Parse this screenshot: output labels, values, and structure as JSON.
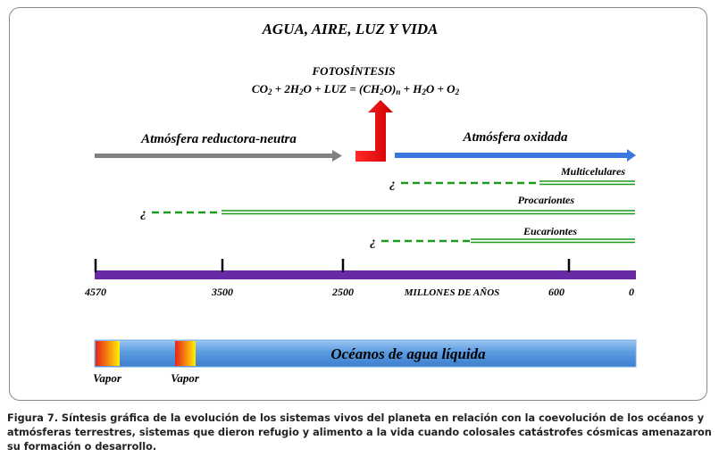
{
  "title": "AGUA, AIRE, LUZ Y VIDA",
  "photosynthesis": {
    "heading": "FOTOSÍNTESIS",
    "eq": {
      "p1": "CO",
      "s1": "2",
      "p2": " + 2H",
      "s2": "2",
      "p3": "O + LUZ = (CH",
      "s3": "2",
      "p4": "O)",
      "s4": "n",
      "p5": " + H",
      "s5": "2",
      "p6": "O + O",
      "s6": "2"
    }
  },
  "atmosphere": {
    "reducing_label": "Atmósfera reductora-neutra",
    "oxidized_label": "Atmósfera oxidada",
    "colors": {
      "reducing": "#808080",
      "oxidized": "#3a78e0",
      "transition": "#ff0000"
    }
  },
  "life": [
    {
      "label": "Multicelulares",
      "prefix": "¿"
    },
    {
      "label": "Procariontes",
      "prefix": "¿"
    },
    {
      "label": "Eucariontes",
      "prefix": "¿"
    }
  ],
  "timeline": {
    "ticks": [
      "4570",
      "3500",
      "2500",
      "600",
      "0"
    ],
    "unit_label": "MILLONES DE AÑOS",
    "color": "#6a2aa8"
  },
  "oceans": {
    "label": "Océanos de agua líquida",
    "vapor_labels": [
      "Vapor",
      "Vapor"
    ],
    "colors": {
      "bar": "#4a90d9",
      "vapor_hot": "#e8221b",
      "vapor_warm": "#ffe600"
    }
  },
  "colors": {
    "life_line": "#1a9a1a",
    "life_dashed": "#1a9a1a"
  },
  "caption": "Figura 7. Síntesis gráfica de la evolución de los sistemas vivos del planeta en relación con la coevolución de los océanos y atmósferas terrestres, sistemas que dieron refugio y alimento a la vida cuando colosales catástrofes cósmicas amenazaron su formación o desarrollo."
}
